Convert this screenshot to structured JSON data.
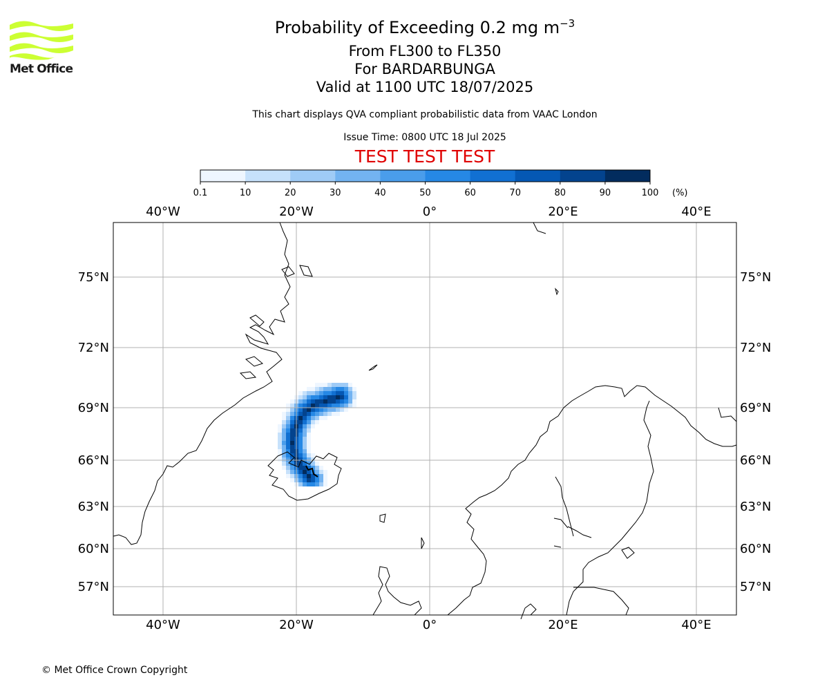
{
  "header": {
    "title_main": "Probability of Exceeding 0.2 mg m",
    "title_unit_exponent": "−3",
    "title_levels": "From FL300 to FL350",
    "title_volcano": "For BARDARBUNGA",
    "title_valid": "Valid at 1100 UTC 18/07/2025",
    "subtitle": "This chart displays QVA compliant probabilistic data from VAAC London",
    "issue_time": "Issue Time: 0800 UTC 18 Jul 2025",
    "test_banner": "TEST TEST TEST"
  },
  "logo": {
    "text": "Met Office",
    "color": "#ccff33"
  },
  "footer": {
    "copyright": "© Met Office Crown Copyright"
  },
  "colorbar": {
    "ticks": [
      "0.1",
      "10",
      "20",
      "30",
      "40",
      "50",
      "60",
      "70",
      "80",
      "90",
      "100"
    ],
    "unit": "(%)",
    "colors": [
      "#eef6ff",
      "#c6e1fb",
      "#9fcbf6",
      "#73b3f1",
      "#4a9deb",
      "#2688e5",
      "#1170d2",
      "#0558b4",
      "#03438e",
      "#022c5e"
    ]
  },
  "map": {
    "lon_labels": [
      "40°W",
      "20°W",
      "0°",
      "20°E",
      "40°E"
    ],
    "lat_labels": [
      "75°N",
      "72°N",
      "69°N",
      "66°N",
      "63°N",
      "60°N",
      "57°N"
    ],
    "grid_color": "#b0b0b0"
  }
}
